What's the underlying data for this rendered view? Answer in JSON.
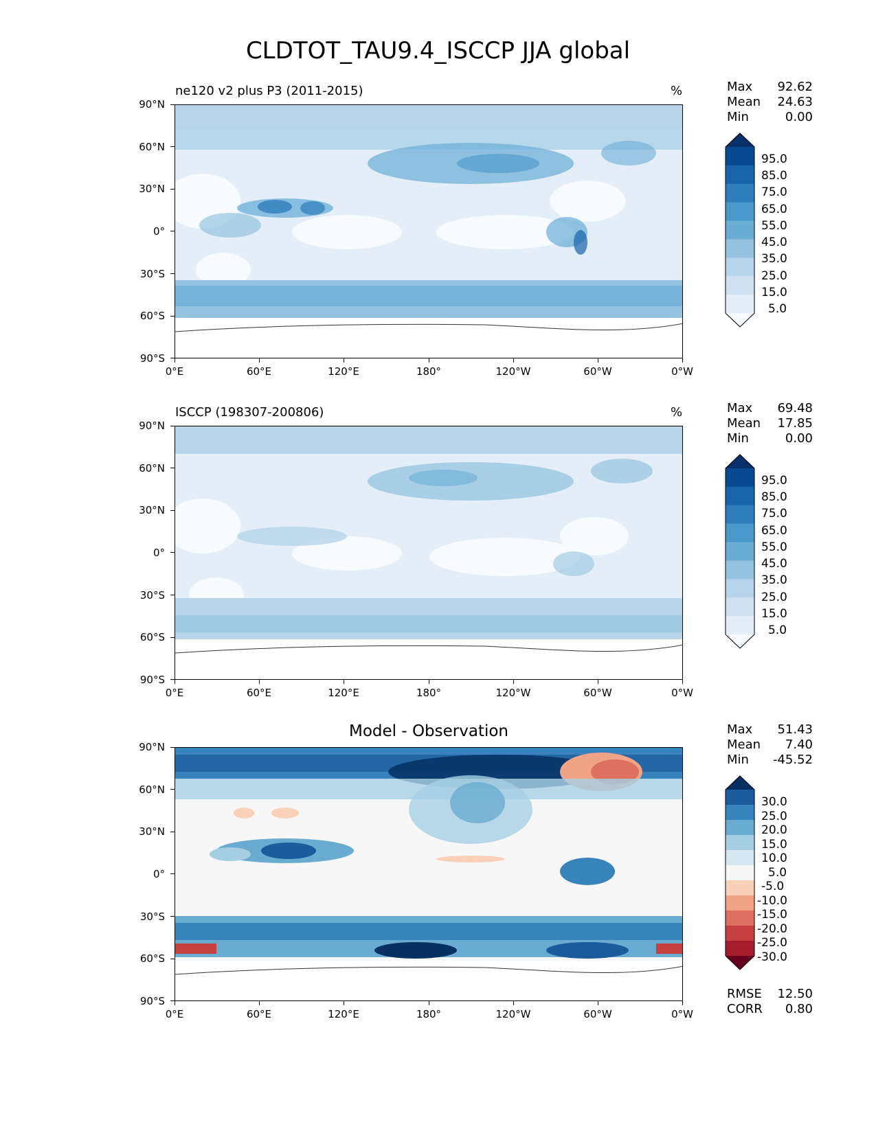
{
  "title": "CLDTOT_TAU9.4_ISCCP JJA global",
  "x_ticks": [
    "0°E",
    "60°E",
    "120°E",
    "180°",
    "120°W",
    "60°W",
    "0°W"
  ],
  "y_ticks": [
    "90°N",
    "60°N",
    "30°N",
    "0°",
    "30°S",
    "60°S",
    "90°S"
  ],
  "panels": [
    {
      "label": "ne120 v2 plus P3 (2011-2015)",
      "units": "%",
      "stats": [
        {
          "name": "Max",
          "value": "92.62"
        },
        {
          "name": "Mean",
          "value": "24.63"
        },
        {
          "name": "Min",
          "value": "0.00"
        }
      ],
      "colorbar_labels": [
        "95.0",
        "85.0",
        "75.0",
        "65.0",
        "55.0",
        "45.0",
        "35.0",
        "25.0",
        "15.0",
        "5.0"
      ]
    },
    {
      "label": "ISCCP (198307-200806)",
      "units": "%",
      "stats": [
        {
          "name": "Max",
          "value": "69.48"
        },
        {
          "name": "Mean",
          "value": "17.85"
        },
        {
          "name": "Min",
          "value": "0.00"
        }
      ],
      "colorbar_labels": [
        "95.0",
        "85.0",
        "75.0",
        "65.0",
        "55.0",
        "45.0",
        "35.0",
        "25.0",
        "15.0",
        "5.0"
      ]
    },
    {
      "title": "Model - Observation",
      "stats": [
        {
          "name": "Max",
          "value": "51.43"
        },
        {
          "name": "Mean",
          "value": "7.40"
        },
        {
          "name": "Min",
          "value": "-45.52"
        }
      ],
      "colorbar_labels": [
        "30.0",
        "25.0",
        "20.0",
        "15.0",
        "10.0",
        "5.0",
        "-5.0",
        "-10.0",
        "-15.0",
        "-20.0",
        "-25.0",
        "-30.0"
      ],
      "metrics": [
        {
          "name": "RMSE",
          "value": "12.50"
        },
        {
          "name": "CORR",
          "value": "0.80"
        }
      ]
    }
  ],
  "colormaps": {
    "blues": [
      "#f7fbff",
      "#e3eef9",
      "#d0e1f2",
      "#b7d4ea",
      "#94c4df",
      "#6aaed6",
      "#4a98c9",
      "#2e7ebc",
      "#1764ab",
      "#084a91",
      "#08306b"
    ],
    "rdbu": [
      "#67001f",
      "#a51d2d",
      "#c5403e",
      "#de7061",
      "#f2a486",
      "#fbd0b9",
      "#f7f7f7",
      "#d5e7f1",
      "#a6cfe4",
      "#6aacd1",
      "#3783bb",
      "#1b5a9b",
      "#053061"
    ]
  }
}
